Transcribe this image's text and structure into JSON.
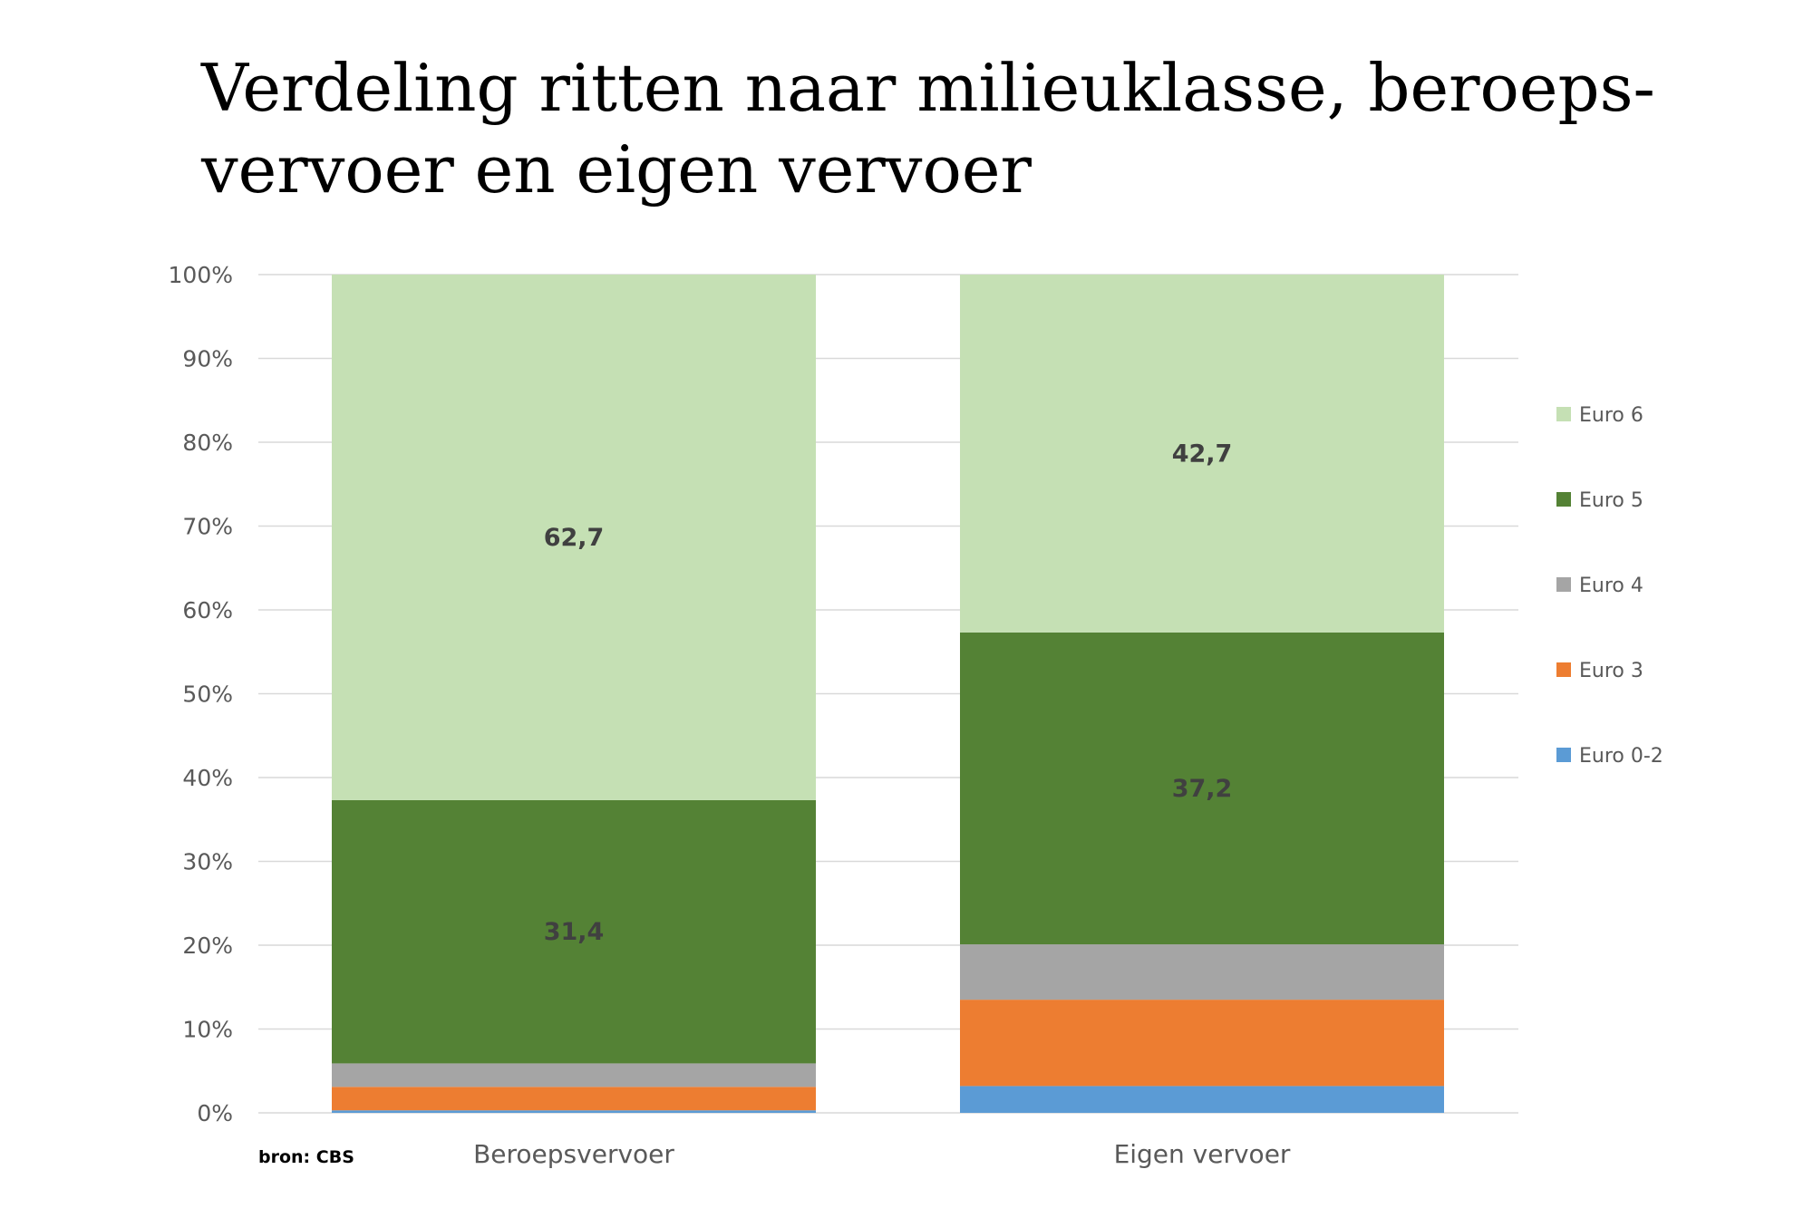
{
  "title_lines": [
    "Verdeling ritten naar milieuklasse, beroeps-",
    "vervoer en eigen vervoer"
  ],
  "source": "bron: CBS",
  "chart_data": {
    "type": "bar",
    "stacked": true,
    "categories": [
      "Beroepsvervoer",
      "Eigen vervoer"
    ],
    "series": [
      {
        "name": "Euro 0-2",
        "color": "#5b9bd5",
        "values": [
          0.3,
          3.2
        ],
        "labels": [
          "",
          ""
        ]
      },
      {
        "name": "Euro 3",
        "color": "#ed7d31",
        "values": [
          2.8,
          10.3
        ],
        "labels": [
          "",
          ""
        ]
      },
      {
        "name": "Euro 4",
        "color": "#a5a5a5",
        "values": [
          2.8,
          6.6
        ],
        "labels": [
          "",
          ""
        ]
      },
      {
        "name": "Euro 5",
        "color": "#548235",
        "values": [
          31.4,
          37.2
        ],
        "labels": [
          "31,4",
          "37,2"
        ]
      },
      {
        "name": "Euro 6",
        "color": "#c5e0b4",
        "values": [
          62.7,
          42.7
        ],
        "labels": [
          "62,7",
          "42,7"
        ]
      }
    ],
    "ylim": [
      0,
      100
    ],
    "yticks": [
      "0%",
      "10%",
      "20%",
      "30%",
      "40%",
      "50%",
      "60%",
      "70%",
      "80%",
      "90%",
      "100%"
    ],
    "legend_order": [
      "Euro 6",
      "Euro 5",
      "Euro 4",
      "Euro 3",
      "Euro 0-2"
    ],
    "legend_position": "right",
    "grid": true
  }
}
